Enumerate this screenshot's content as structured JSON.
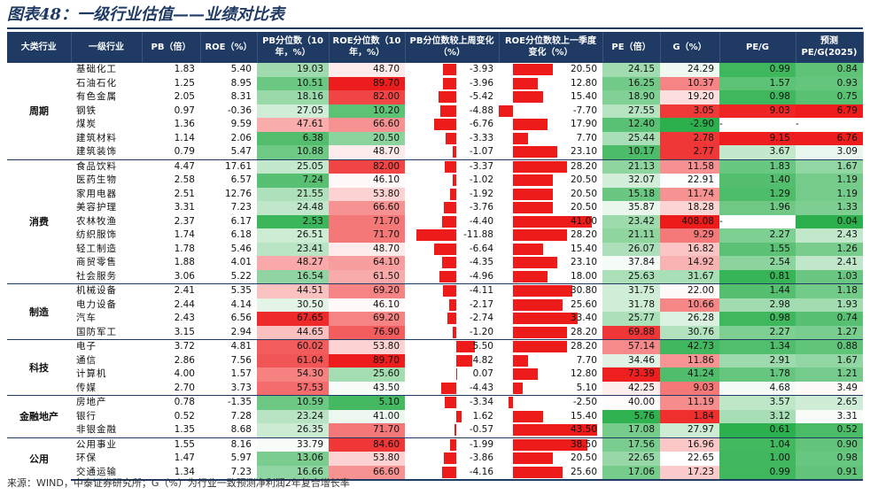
{
  "title": "图表48：一级行业估值——业绩对比表",
  "footer": "来源：WIND，中泰证券研究所；G（%）为行业一致预测净利润2年复合增长率",
  "columns": [
    "大类行业",
    "一级行业",
    "PB（倍）",
    "ROE（%）",
    "PB分位数（10年，%）",
    "ROE分位数（10年，%）",
    "PB分位数较上周变化（%）",
    "ROE分位数较上一季度变化（%）",
    "PE（倍）",
    "G（%）",
    "PE/G",
    "预测PE/G(2025)"
  ],
  "groups": [
    {
      "name": "周期",
      "rows": [
        {
          "ind": "基础化工",
          "pb": "1.83",
          "roe": "5.40",
          "pbp": "19.03",
          "roep": "48.70",
          "pbc": "-3.93",
          "roec": "20.50",
          "pe": "24.15",
          "g": "24.29",
          "peg": "0.99",
          "peg25": "0.84"
        },
        {
          "ind": "石油石化",
          "pb": "1.25",
          "roe": "8.95",
          "pbp": "10.51",
          "roep": "89.70",
          "pbc": "-3.96",
          "roec": "12.80",
          "pe": "16.25",
          "g": "10.37",
          "peg": "1.57",
          "peg25": "0.93"
        },
        {
          "ind": "有色金属",
          "pb": "2.05",
          "roe": "8.31",
          "pbp": "18.16",
          "roep": "82.00",
          "pbc": "-5.42",
          "roec": "15.40",
          "pe": "18.90",
          "g": "19.20",
          "peg": "0.98",
          "peg25": "0.75"
        },
        {
          "ind": "钢铁",
          "pb": "0.97",
          "roe": "-0.36",
          "pbp": "27.05",
          "roep": "10.20",
          "pbc": "-4.88",
          "roec": "-7.70",
          "pe": "27.55",
          "g": "3.05",
          "peg": "9.03",
          "peg25": "6.79"
        },
        {
          "ind": "煤炭",
          "pb": "1.36",
          "roe": "9.59",
          "pbp": "47.61",
          "roep": "66.60",
          "pbc": "-6.76",
          "roec": "17.90",
          "pe": "12.40",
          "g": "-2.90",
          "peg": "-",
          "peg25": "-"
        },
        {
          "ind": "建筑材料",
          "pb": "1.14",
          "roe": "2.06",
          "pbp": "6.38",
          "roep": "20.50",
          "pbc": "-3.33",
          "roec": "7.70",
          "pe": "25.44",
          "g": "2.78",
          "peg": "9.15",
          "peg25": "6.76"
        },
        {
          "ind": "建筑装饰",
          "pb": "0.79",
          "roe": "5.47",
          "pbp": "10.88",
          "roep": "48.70",
          "pbc": "-1.07",
          "roec": "23.10",
          "pe": "10.17",
          "g": "2.77",
          "peg": "3.67",
          "peg25": "3.09"
        }
      ]
    },
    {
      "name": "消费",
      "rows": [
        {
          "ind": "食品饮料",
          "pb": "4.47",
          "roe": "17.61",
          "pbp": "25.05",
          "roep": "82.00",
          "pbc": "-3.37",
          "roec": "28.20",
          "pe": "21.13",
          "g": "11.58",
          "peg": "1.83",
          "peg25": "1.67"
        },
        {
          "ind": "医药生物",
          "pb": "2.58",
          "roe": "6.57",
          "pbp": "7.24",
          "roep": "46.10",
          "pbc": "-1.02",
          "roec": "20.50",
          "pe": "32.07",
          "g": "22.91",
          "peg": "1.40",
          "peg25": "1.19"
        },
        {
          "ind": "家用电器",
          "pb": "2.51",
          "roe": "12.76",
          "pbp": "21.55",
          "roep": "53.80",
          "pbc": "-1.92",
          "roec": "20.50",
          "pe": "15.18",
          "g": "11.74",
          "peg": "1.29",
          "peg25": "1.19"
        },
        {
          "ind": "美容护理",
          "pb": "3.31",
          "roe": "7.23",
          "pbp": "24.48",
          "roep": "66.60",
          "pbc": "-3.76",
          "roec": "20.50",
          "pe": "35.87",
          "g": "18.28",
          "peg": "1.96",
          "peg25": "1.33"
        },
        {
          "ind": "农林牧渔",
          "pb": "2.37",
          "roe": "6.17",
          "pbp": "2.53",
          "roep": "71.70",
          "pbc": "-4.40",
          "roec": "41.00",
          "pe": "23.42",
          "g": "408.08",
          "peg": "-",
          "peg25": "0.04"
        },
        {
          "ind": "纺织服饰",
          "pb": "1.74",
          "roe": "6.18",
          "pbp": "26.51",
          "roep": "71.70",
          "pbc": "-11.88",
          "roec": "28.20",
          "pe": "21.11",
          "g": "9.29",
          "peg": "2.27",
          "peg25": "2.43"
        },
        {
          "ind": "轻工制造",
          "pb": "1.78",
          "roe": "5.46",
          "pbp": "23.41",
          "roep": "48.70",
          "pbc": "-6.64",
          "roec": "15.40",
          "pe": "26.07",
          "g": "16.82",
          "peg": "1.55",
          "peg25": "1.26"
        },
        {
          "ind": "商贸零售",
          "pb": "1.88",
          "roe": "4.01",
          "pbp": "48.27",
          "roep": "64.10",
          "pbc": "-4.35",
          "roec": "23.10",
          "pe": "37.84",
          "g": "14.92",
          "peg": "2.54",
          "peg25": "2.41"
        },
        {
          "ind": "社会服务",
          "pb": "3.06",
          "roe": "5.22",
          "pbp": "16.54",
          "roep": "61.50",
          "pbc": "-4.96",
          "roec": "18.00",
          "pe": "25.63",
          "g": "31.67",
          "peg": "0.81",
          "peg25": "1.03"
        }
      ]
    },
    {
      "name": "制造",
      "rows": [
        {
          "ind": "机械设备",
          "pb": "2.41",
          "roe": "5.35",
          "pbp": "44.51",
          "roep": "69.20",
          "pbc": "-4.11",
          "roec": "30.80",
          "pe": "31.75",
          "g": "22.00",
          "peg": "1.44",
          "peg25": "1.18"
        },
        {
          "ind": "电力设备",
          "pb": "2.44",
          "roe": "4.14",
          "pbp": "30.50",
          "roep": "46.10",
          "pbc": "-2.17",
          "roec": "25.60",
          "pe": "31.78",
          "g": "10.66",
          "peg": "2.98",
          "peg25": "1.93"
        },
        {
          "ind": "汽车",
          "pb": "2.43",
          "roe": "6.56",
          "pbp": "67.65",
          "roep": "69.20",
          "pbc": "-2.74",
          "roec": "33.40",
          "pe": "25.77",
          "g": "26.28",
          "peg": "0.98",
          "peg25": "0.74"
        },
        {
          "ind": "国防军工",
          "pb": "3.15",
          "roe": "2.94",
          "pbp": "44.65",
          "roep": "76.90",
          "pbc": "-1.20",
          "roec": "28.20",
          "pe": "69.88",
          "g": "30.76",
          "peg": "2.27",
          "peg25": "1.27"
        }
      ]
    },
    {
      "name": "科技",
      "rows": [
        {
          "ind": "电子",
          "pb": "3.72",
          "roe": "4.81",
          "pbp": "60.02",
          "roep": "53.80",
          "pbc": "5.50",
          "roec": "28.20",
          "pe": "57.14",
          "g": "42.73",
          "peg": "1.34",
          "peg25": "0.88"
        },
        {
          "ind": "通信",
          "pb": "2.86",
          "roe": "7.56",
          "pbp": "61.04",
          "roep": "89.70",
          "pbc": "4.82",
          "roec": "7.70",
          "pe": "34.46",
          "g": "11.86",
          "peg": "2.91",
          "peg25": "1.67"
        },
        {
          "ind": "计算机",
          "pb": "4.00",
          "roe": "1.57",
          "pbp": "54.30",
          "roep": "25.60",
          "pbc": "0.07",
          "roec": "12.80",
          "pe": "73.39",
          "g": "41.24",
          "peg": "1.78",
          "peg25": "1.21"
        },
        {
          "ind": "传媒",
          "pb": "2.70",
          "roe": "3.73",
          "pbp": "57.53",
          "roep": "43.50",
          "pbc": "-4.43",
          "roec": "5.10",
          "pe": "42.25",
          "g": "9.03",
          "peg": "4.68",
          "peg25": "3.49"
        }
      ]
    },
    {
      "name": "金融地产",
      "rows": [
        {
          "ind": "房地产",
          "pb": "0.78",
          "roe": "-1.35",
          "pbp": "10.59",
          "roep": "5.10",
          "pbc": "-3.34",
          "roec": "-2.50",
          "pe": "40.00",
          "g": "11.19",
          "peg": "3.57",
          "peg25": "2.65"
        },
        {
          "ind": "银行",
          "pb": "0.52",
          "roe": "7.28",
          "pbp": "23.24",
          "roep": "41.00",
          "pbc": "1.62",
          "roec": "15.40",
          "pe": "5.76",
          "g": "1.84",
          "peg": "3.12",
          "peg25": "3.31"
        },
        {
          "ind": "非银金融",
          "pb": "1.35",
          "roe": "8.68",
          "pbp": "26.35",
          "roep": "71.70",
          "pbc": "-0.57",
          "roec": "43.50",
          "pe": "17.08",
          "g": "27.97",
          "peg": "0.61",
          "peg25": "0.52"
        }
      ]
    },
    {
      "name": "公用",
      "rows": [
        {
          "ind": "公用事业",
          "pb": "1.55",
          "roe": "8.16",
          "pbp": "33.79",
          "roep": "84.60",
          "pbc": "-1.99",
          "roec": "38.50",
          "pe": "17.56",
          "g": "16.96",
          "peg": "1.04",
          "peg25": "0.90"
        },
        {
          "ind": "环保",
          "pb": "1.47",
          "roe": "5.97",
          "pbp": "13.06",
          "roep": "53.80",
          "pbc": "-3.86",
          "roec": "20.50",
          "pe": "22.65",
          "g": "22.65",
          "peg": "1.00",
          "peg25": "0.98"
        },
        {
          "ind": "交通运输",
          "pb": "1.34",
          "roe": "7.23",
          "pbp": "16.66",
          "roep": "66.60",
          "pbc": "-4.16",
          "roec": "25.60",
          "pe": "17.06",
          "g": "17.23",
          "peg": "0.99",
          "peg25": "0.91"
        }
      ]
    }
  ],
  "colors": {
    "header": "#1f3a63",
    "red": "#ee1b1b",
    "green": "#2cb04d"
  }
}
